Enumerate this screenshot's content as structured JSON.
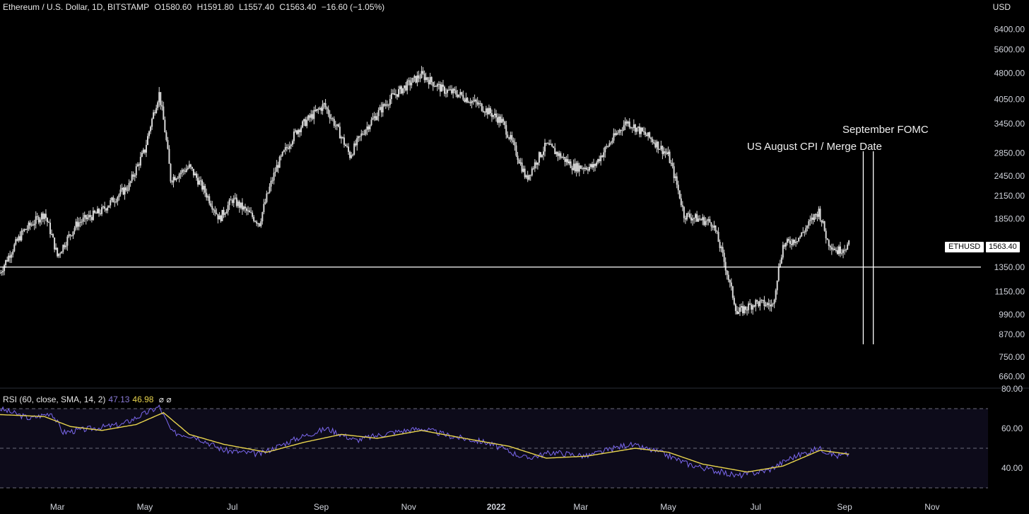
{
  "header": {
    "title": "Ethereum / U.S. Dollar, 1D, BITSTAMP",
    "open": "O1580.60",
    "high": "H1591.80",
    "low": "L1557.40",
    "close": "C1563.40",
    "change": "−16.60 (−1.05%)"
  },
  "currency_label": "USD",
  "ticker_label": "ETHUSD",
  "last_price_label": "1563.40",
  "rsi_header": {
    "label": "RSI (60, close, SMA, 14, 2)",
    "rsi_value": "47.13",
    "sma_value": "46.98",
    "symbols": "⌀ ⌀"
  },
  "annotations": {
    "cpi": "US August CPI / Merge Date",
    "fomc": "September FOMC"
  },
  "colors": {
    "background": "#000000",
    "candle": "#d9d9d9",
    "rsi_line": "#7b68ee",
    "rsi_sma": "#e8d44d",
    "rsi_band": "#0d0b1a"
  },
  "chart_data": [
    {
      "type": "candlestick",
      "symbol": "ETHUSD",
      "exchange": "BITSTAMP",
      "interval": "1D",
      "y_scale": "log",
      "ylim": [
        620,
        7000
      ],
      "y_ticks": [
        6400.0,
        5600.0,
        4800.0,
        4050.0,
        3450.0,
        2850.0,
        2450.0,
        2150.0,
        1850.0,
        1563.4,
        1350.0,
        1150.0,
        990.0,
        870.0,
        750.0,
        660.0
      ],
      "y_tick_labels": [
        "6400.00",
        "5600.00",
        "4800.00",
        "4050.00",
        "3450.00",
        "2850.00",
        "2450.00",
        "2150.00",
        "1850.00",
        "1563.40",
        "1350.00",
        "1150.00",
        "990.00",
        "870.00",
        "750.00",
        "660.00"
      ],
      "x_tick_labels": [
        "Mar",
        "May",
        "Jul",
        "Sep",
        "Nov",
        "2022",
        "Mar",
        "May",
        "Jul",
        "Sep",
        "Nov"
      ],
      "x_tick_dates": [
        "2021-03-01",
        "2021-05-01",
        "2021-07-01",
        "2021-09-01",
        "2021-11-01",
        "2022-01-01",
        "2022-03-01",
        "2022-05-01",
        "2022-07-01",
        "2022-09-01",
        "2022-11-01"
      ],
      "x_range": [
        "2021-01-20",
        "2022-12-10"
      ],
      "close_path": [
        {
          "date": "2021-01-20",
          "close": 1300
        },
        {
          "date": "2021-02-05",
          "close": 1700
        },
        {
          "date": "2021-02-20",
          "close": 1920
        },
        {
          "date": "2021-03-01",
          "close": 1450
        },
        {
          "date": "2021-03-15",
          "close": 1800
        },
        {
          "date": "2021-04-01",
          "close": 1950
        },
        {
          "date": "2021-04-20",
          "close": 2300
        },
        {
          "date": "2021-05-01",
          "close": 2900
        },
        {
          "date": "2021-05-11",
          "close": 4200
        },
        {
          "date": "2021-05-19",
          "close": 2400
        },
        {
          "date": "2021-06-01",
          "close": 2600
        },
        {
          "date": "2021-06-22",
          "close": 1850
        },
        {
          "date": "2021-07-01",
          "close": 2100
        },
        {
          "date": "2021-07-20",
          "close": 1800
        },
        {
          "date": "2021-08-01",
          "close": 2600
        },
        {
          "date": "2021-08-15",
          "close": 3300
        },
        {
          "date": "2021-09-03",
          "close": 3900
        },
        {
          "date": "2021-09-21",
          "close": 2800
        },
        {
          "date": "2021-10-01",
          "close": 3300
        },
        {
          "date": "2021-10-20",
          "close": 4100
        },
        {
          "date": "2021-11-10",
          "close": 4750
        },
        {
          "date": "2021-11-25",
          "close": 4300
        },
        {
          "date": "2021-12-05",
          "close": 4200
        },
        {
          "date": "2021-12-20",
          "close": 3900
        },
        {
          "date": "2022-01-05",
          "close": 3500
        },
        {
          "date": "2022-01-22",
          "close": 2400
        },
        {
          "date": "2022-02-05",
          "close": 3000
        },
        {
          "date": "2022-02-24",
          "close": 2600
        },
        {
          "date": "2022-03-10",
          "close": 2600
        },
        {
          "date": "2022-04-02",
          "close": 3500
        },
        {
          "date": "2022-04-20",
          "close": 3100
        },
        {
          "date": "2022-05-01",
          "close": 2800
        },
        {
          "date": "2022-05-12",
          "close": 1900
        },
        {
          "date": "2022-06-01",
          "close": 1800
        },
        {
          "date": "2022-06-13",
          "close": 1200
        },
        {
          "date": "2022-06-18",
          "close": 1000
        },
        {
          "date": "2022-07-01",
          "close": 1070
        },
        {
          "date": "2022-07-13",
          "close": 1050
        },
        {
          "date": "2022-07-20",
          "close": 1550
        },
        {
          "date": "2022-08-01",
          "close": 1650
        },
        {
          "date": "2022-08-14",
          "close": 1950
        },
        {
          "date": "2022-08-20",
          "close": 1600
        },
        {
          "date": "2022-08-27",
          "close": 1500
        },
        {
          "date": "2022-09-04",
          "close": 1563.4
        }
      ],
      "horizontal_line": {
        "price": 1350
      },
      "vertical_lines": [
        {
          "date": "2022-09-14",
          "label": "US August CPI / Merge Date"
        },
        {
          "date": "2022-09-21",
          "label": "September FOMC"
        }
      ]
    },
    {
      "type": "line",
      "title": "RSI (60, close, SMA, 14, 2)",
      "ylim": [
        25,
        80
      ],
      "y_tick_labels": [
        "80.00",
        "60.00",
        "40.00"
      ],
      "y_ticks": [
        80,
        60,
        40
      ],
      "bands": {
        "upper": 70,
        "middle": 50,
        "lower": 30
      },
      "series": [
        {
          "name": "RSI",
          "points": [
            {
              "date": "2021-01-20",
              "value": 70
            },
            {
              "date": "2021-02-10",
              "value": 65
            },
            {
              "date": "2021-02-25",
              "value": 68
            },
            {
              "date": "2021-03-05",
              "value": 58
            },
            {
              "date": "2021-03-25",
              "value": 60
            },
            {
              "date": "2021-04-15",
              "value": 62
            },
            {
              "date": "2021-05-11",
              "value": 71
            },
            {
              "date": "2021-05-20",
              "value": 58
            },
            {
              "date": "2021-06-05",
              "value": 56
            },
            {
              "date": "2021-06-25",
              "value": 49
            },
            {
              "date": "2021-07-20",
              "value": 47
            },
            {
              "date": "2021-08-15",
              "value": 55
            },
            {
              "date": "2021-09-05",
              "value": 60
            },
            {
              "date": "2021-09-25",
              "value": 54
            },
            {
              "date": "2021-10-20",
              "value": 58
            },
            {
              "date": "2021-11-10",
              "value": 60
            },
            {
              "date": "2021-12-01",
              "value": 56
            },
            {
              "date": "2021-12-25",
              "value": 53
            },
            {
              "date": "2022-01-22",
              "value": 45
            },
            {
              "date": "2022-02-10",
              "value": 48
            },
            {
              "date": "2022-03-05",
              "value": 46
            },
            {
              "date": "2022-04-03",
              "value": 52
            },
            {
              "date": "2022-04-25",
              "value": 48
            },
            {
              "date": "2022-05-15",
              "value": 42
            },
            {
              "date": "2022-06-18",
              "value": 36
            },
            {
              "date": "2022-07-10",
              "value": 39
            },
            {
              "date": "2022-07-25",
              "value": 45
            },
            {
              "date": "2022-08-14",
              "value": 50
            },
            {
              "date": "2022-08-27",
              "value": 46
            },
            {
              "date": "2022-09-04",
              "value": 47.13
            }
          ]
        },
        {
          "name": "RSI-based MA",
          "points": [
            {
              "date": "2021-01-20",
              "value": 67
            },
            {
              "date": "2021-02-20",
              "value": 66
            },
            {
              "date": "2021-03-10",
              "value": 61
            },
            {
              "date": "2021-04-01",
              "value": 59
            },
            {
              "date": "2021-04-25",
              "value": 62
            },
            {
              "date": "2021-05-14",
              "value": 68
            },
            {
              "date": "2021-06-01",
              "value": 57
            },
            {
              "date": "2021-06-25",
              "value": 52
            },
            {
              "date": "2021-07-25",
              "value": 48
            },
            {
              "date": "2021-08-20",
              "value": 53
            },
            {
              "date": "2021-09-15",
              "value": 57
            },
            {
              "date": "2021-10-10",
              "value": 55
            },
            {
              "date": "2021-11-10",
              "value": 59
            },
            {
              "date": "2021-12-10",
              "value": 55
            },
            {
              "date": "2022-01-10",
              "value": 51
            },
            {
              "date": "2022-02-05",
              "value": 45
            },
            {
              "date": "2022-03-05",
              "value": 46
            },
            {
              "date": "2022-04-08",
              "value": 50
            },
            {
              "date": "2022-05-01",
              "value": 48
            },
            {
              "date": "2022-05-25",
              "value": 42
            },
            {
              "date": "2022-06-25",
              "value": 38
            },
            {
              "date": "2022-07-20",
              "value": 41
            },
            {
              "date": "2022-08-15",
              "value": 49
            },
            {
              "date": "2022-09-04",
              "value": 46.98
            }
          ]
        }
      ],
      "x_range": [
        "2021-01-20",
        "2022-12-10"
      ]
    }
  ]
}
